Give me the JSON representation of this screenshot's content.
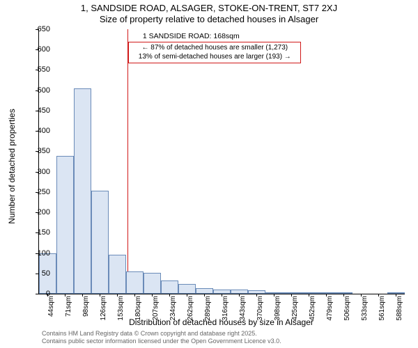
{
  "title_main": "1, SANDSIDE ROAD, ALSAGER, STOKE-ON-TRENT, ST7 2XJ",
  "title_sub": "Size of property relative to detached houses in Alsager",
  "ylabel": "Number of detached properties",
  "xlabel": "Distribution of detached houses by size in Alsager",
  "credit1": "Contains HM Land Registry data © Crown copyright and database right 2025.",
  "credit2": "Contains public sector information licensed under the Open Government Licence v3.0.",
  "chart": {
    "type": "bar",
    "ylim": [
      0,
      650
    ],
    "ytick_step": 50,
    "categories": [
      "44sqm",
      "71sqm",
      "98sqm",
      "126sqm",
      "153sqm",
      "180sqm",
      "207sqm",
      "234sqm",
      "262sqm",
      "289sqm",
      "316sqm",
      "343sqm",
      "370sqm",
      "398sqm",
      "425sqm",
      "452sqm",
      "479sqm",
      "506sqm",
      "533sqm",
      "561sqm",
      "588sqm"
    ],
    "values": [
      100,
      338,
      505,
      253,
      95,
      55,
      52,
      32,
      24,
      14,
      10,
      10,
      8,
      4,
      2,
      1,
      1,
      1,
      0,
      0,
      1
    ],
    "bar_fill": "#dbe5f3",
    "bar_border": "#6a8bb8",
    "background": "#ffffff",
    "ref_value": 168,
    "ref_color": "#d01818",
    "annot_title": "1 SANDSIDE ROAD: 168sqm",
    "annot_line1": "← 87% of detached houses are smaller (1,273)",
    "annot_line2": "13% of semi-detached houses are larger (193) →",
    "label_fontsize": 12,
    "tick_fontsize": 11
  }
}
